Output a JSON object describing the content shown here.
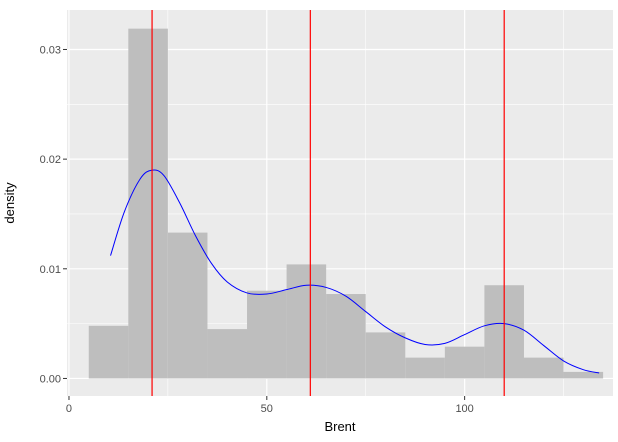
{
  "chart_data": {
    "type": "histogram",
    "xlabel": "Brent",
    "ylabel": "density",
    "xlim": [
      -0.5,
      137.5
    ],
    "ylim": [
      -0.0016,
      0.0336
    ],
    "x_ticks": [
      0,
      50,
      100
    ],
    "x_tick_labels": [
      "0",
      "50",
      "100"
    ],
    "y_ticks": [
      0,
      0.01,
      0.02,
      0.03
    ],
    "y_tick_labels": [
      "0.00",
      "0.01",
      "0.02",
      "0.03"
    ],
    "grid": true,
    "legend": "none",
    "colors": {
      "panel": "#ebebeb",
      "grid": "#ffffff",
      "bars": "#bebebe",
      "density_line": "#0000ff",
      "vlines": "#ff0000"
    },
    "bins": [
      {
        "x0": 5,
        "x1": 15,
        "density": 0.0048
      },
      {
        "x0": 15,
        "x1": 25,
        "density": 0.0319
      },
      {
        "x0": 25,
        "x1": 35,
        "density": 0.0133
      },
      {
        "x0": 35,
        "x1": 45,
        "density": 0.0045
      },
      {
        "x0": 45,
        "x1": 55,
        "density": 0.008
      },
      {
        "x0": 55,
        "x1": 65,
        "density": 0.0104
      },
      {
        "x0": 65,
        "x1": 75,
        "density": 0.0077
      },
      {
        "x0": 75,
        "x1": 85,
        "density": 0.0042
      },
      {
        "x0": 85,
        "x1": 95,
        "density": 0.0019
      },
      {
        "x0": 95,
        "x1": 105,
        "density": 0.0029
      },
      {
        "x0": 105,
        "x1": 115,
        "density": 0.0085
      },
      {
        "x0": 115,
        "x1": 125,
        "density": 0.0019
      },
      {
        "x0": 125,
        "x1": 135,
        "density": 0.0006
      }
    ],
    "density_curve": {
      "x": [
        10.5,
        14,
        18,
        21,
        24,
        28,
        32,
        36,
        40,
        45,
        50,
        55,
        60,
        65,
        70,
        75,
        80,
        85,
        90,
        95,
        100,
        105,
        110,
        115,
        120,
        125,
        130,
        134
      ],
      "y": [
        0.0112,
        0.0152,
        0.0182,
        0.019,
        0.0185,
        0.016,
        0.013,
        0.0105,
        0.0088,
        0.0078,
        0.0077,
        0.0081,
        0.0085,
        0.0083,
        0.0075,
        0.0061,
        0.0047,
        0.0037,
        0.0031,
        0.0032,
        0.004,
        0.0048,
        0.005,
        0.0044,
        0.003,
        0.0016,
        0.0008,
        0.0005
      ]
    },
    "vlines": [
      21,
      61,
      110
    ]
  }
}
